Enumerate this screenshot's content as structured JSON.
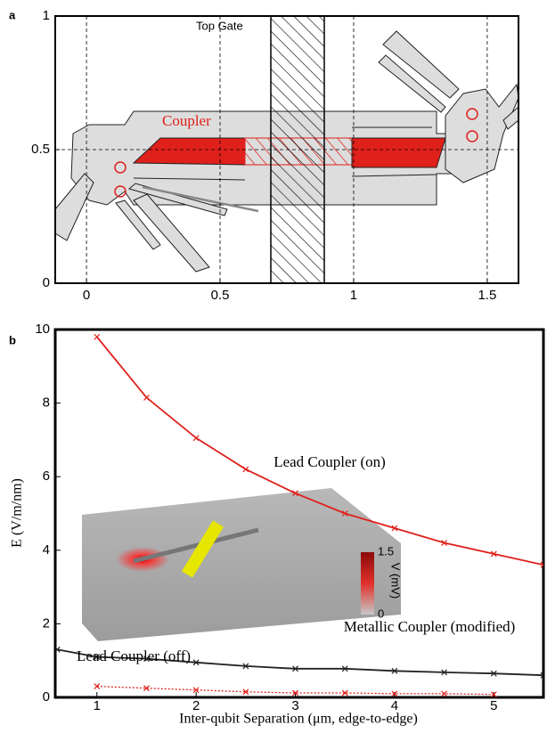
{
  "chart_data": [
    {
      "type": "schematic",
      "panel_label": "a",
      "annotations": [
        "Top Gate",
        "Coupler"
      ],
      "xlim": [
        -0.117,
        1.617
      ],
      "xticks": [
        0,
        0.5,
        1,
        1.5
      ],
      "ylim": [
        0,
        1
      ],
      "yticks": [
        0,
        0.5,
        1
      ],
      "grid": true
    },
    {
      "type": "line",
      "panel_label": "b",
      "xlabel": "Inter-qubit Separation (μm, edge-to-edge)",
      "ylabel": "E (V/m/nm)",
      "xlim": [
        0.58,
        5.5
      ],
      "xticks": [
        1,
        2,
        3,
        4,
        5
      ],
      "ylim": [
        0,
        10
      ],
      "yticks": [
        0,
        2,
        4,
        6,
        8,
        10
      ],
      "series": [
        {
          "name": "Lead Coupler (on)",
          "color": "#e0201b",
          "style": "solid",
          "x": [
            1,
            1.5,
            2,
            2.5,
            3,
            3.5,
            4,
            4.5,
            5,
            5.5
          ],
          "values": [
            9.8,
            8.15,
            7.05,
            6.2,
            5.55,
            5.0,
            4.6,
            4.2,
            3.9,
            3.6
          ]
        },
        {
          "name": "Metallic Coupler (modified)",
          "color": "#222222",
          "style": "solid",
          "x": [
            0.6,
            1,
            1.5,
            2,
            2.5,
            3,
            3.5,
            4,
            4.5,
            5,
            5.5
          ],
          "values": [
            1.3,
            1.1,
            1.05,
            0.95,
            0.85,
            0.78,
            0.78,
            0.72,
            0.68,
            0.65,
            0.6
          ]
        },
        {
          "name": "Lead Coupler (off)",
          "color": "#e0201b",
          "style": "dotted",
          "x": [
            1,
            1.5,
            2,
            2.5,
            3,
            3.5,
            4,
            4.5,
            5
          ],
          "values": [
            0.3,
            0.25,
            0.2,
            0.15,
            0.12,
            0.12,
            0.1,
            0.1,
            0.08
          ]
        }
      ],
      "colorbar": {
        "label": "V (mV)",
        "ticks": [
          0,
          1.5
        ]
      }
    }
  ]
}
